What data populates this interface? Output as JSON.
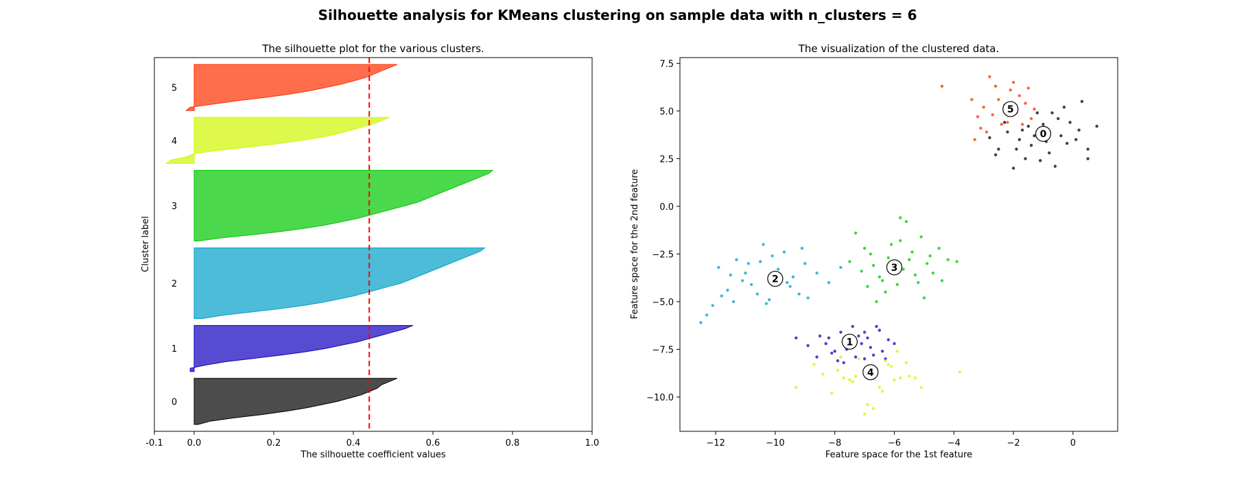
{
  "suptitle": "Silhouette analysis for KMeans clustering on sample data with n_clusters = 6",
  "chart_data": [
    {
      "type": "area",
      "title": "The silhouette plot for the various clusters.",
      "xlabel": "The silhouette coefficient values",
      "ylabel": "Cluster label",
      "xlim": [
        -0.1,
        1.0
      ],
      "xticks": [
        "-0.1",
        "0.0",
        "0.2",
        "0.4",
        "0.6",
        "0.8",
        "1.0"
      ],
      "xtick_values": [
        -0.1,
        0.0,
        0.2,
        0.4,
        0.6,
        0.8,
        1.0
      ],
      "grid": false,
      "average_silhouette_score": 0.44,
      "average_line_color": "#ff0000",
      "clusters": [
        {
          "label": "0",
          "color": "#000000",
          "sorted_values": [
            0.51,
            0.49,
            0.47,
            0.46,
            0.44,
            0.42,
            0.39,
            0.36,
            0.32,
            0.28,
            0.23,
            0.17,
            0.1,
            0.04,
            0.01
          ]
        },
        {
          "label": "1",
          "color": "#0f00bd",
          "sorted_values": [
            0.55,
            0.53,
            0.5,
            0.47,
            0.44,
            0.41,
            0.37,
            0.33,
            0.28,
            0.22,
            0.15,
            0.08,
            0.03,
            -0.01,
            -0.01
          ]
        },
        {
          "label": "2",
          "color": "#00a0c8",
          "sorted_values": [
            0.73,
            0.72,
            0.7,
            0.68,
            0.66,
            0.64,
            0.62,
            0.6,
            0.58,
            0.56,
            0.54,
            0.52,
            0.49,
            0.46,
            0.43,
            0.4,
            0.36,
            0.32,
            0.27,
            0.21,
            0.14,
            0.07,
            0.02
          ]
        },
        {
          "label": "3",
          "color": "#00c800",
          "sorted_values": [
            0.75,
            0.74,
            0.72,
            0.7,
            0.68,
            0.66,
            0.64,
            0.62,
            0.6,
            0.58,
            0.56,
            0.53,
            0.5,
            0.47,
            0.44,
            0.41,
            0.37,
            0.33,
            0.28,
            0.22,
            0.15,
            0.07,
            0.01
          ]
        },
        {
          "label": "4",
          "color": "#d0f700",
          "sorted_values": [
            0.49,
            0.47,
            0.45,
            0.42,
            0.39,
            0.36,
            0.32,
            0.27,
            0.21,
            0.14,
            0.06,
            0.0,
            -0.02,
            -0.06,
            -0.07
          ]
        },
        {
          "label": "5",
          "color": "#ff3000",
          "sorted_values": [
            0.51,
            0.49,
            0.47,
            0.45,
            0.43,
            0.4,
            0.37,
            0.33,
            0.29,
            0.24,
            0.18,
            0.11,
            0.05,
            -0.01,
            -0.02
          ]
        }
      ]
    },
    {
      "type": "scatter",
      "title": "The visualization of the clustered data.",
      "xlabel": "Feature space for the 1st feature",
      "ylabel": "Feature space for the 2nd feature",
      "xlim": [
        -13.2,
        1.5
      ],
      "ylim": [
        -11.8,
        7.8
      ],
      "xticks": [
        "−12",
        "−10",
        "−8",
        "−6",
        "−4",
        "−2",
        "0"
      ],
      "xtick_values": [
        -12,
        -10,
        -8,
        -6,
        -4,
        -2,
        0
      ],
      "yticks": [
        "7.5",
        "5.0",
        "2.5",
        "0.0",
        "−2.5",
        "−5.0",
        "−7.5",
        "−10.0"
      ],
      "ytick_values": [
        7.5,
        5.0,
        2.5,
        0.0,
        -2.5,
        -5.0,
        -7.5,
        -10.0
      ],
      "grid": false,
      "clusters": [
        {
          "label": "0",
          "color": "#000000",
          "center": [
            -1.0,
            3.8
          ],
          "points": [
            [
              -1.0,
              3.8
            ],
            [
              -1.5,
              4.2
            ],
            [
              -0.5,
              4.6
            ],
            [
              -0.2,
              3.3
            ],
            [
              -1.8,
              3.5
            ],
            [
              -2.2,
              3.9
            ],
            [
              -0.8,
              2.8
            ],
            [
              -1.2,
              4.9
            ],
            [
              -0.3,
              5.2
            ],
            [
              0.2,
              4.0
            ],
            [
              0.5,
              3.0
            ],
            [
              0.8,
              4.2
            ],
            [
              -2.5,
              3.0
            ],
            [
              -1.6,
              2.5
            ],
            [
              -0.6,
              2.1
            ],
            [
              0.5,
              2.5
            ],
            [
              -2.0,
              2.0
            ],
            [
              -1.0,
              4.3
            ],
            [
              -1.4,
              3.2
            ],
            [
              -0.1,
              4.4
            ],
            [
              -2.8,
              3.6
            ],
            [
              -2.3,
              4.4
            ],
            [
              0.1,
              3.5
            ],
            [
              -0.9,
              3.4
            ],
            [
              -1.7,
              4.0
            ],
            [
              -1.9,
              3.0
            ],
            [
              -0.4,
              3.7
            ],
            [
              -2.6,
              2.7
            ],
            [
              0.3,
              5.5
            ],
            [
              -1.1,
              2.4
            ],
            [
              -0.7,
              4.9
            ],
            [
              -1.3,
              3.7
            ]
          ]
        },
        {
          "label": "1",
          "color": "#0f00bd",
          "center": [
            -7.5,
            -7.1
          ],
          "points": [
            [
              -7.5,
              -7.1
            ],
            [
              -8.0,
              -7.6
            ],
            [
              -7.2,
              -6.8
            ],
            [
              -6.8,
              -7.4
            ],
            [
              -6.5,
              -6.5
            ],
            [
              -8.3,
              -7.2
            ],
            [
              -7.8,
              -6.6
            ],
            [
              -7.0,
              -8.0
            ],
            [
              -6.2,
              -7.0
            ],
            [
              -8.6,
              -7.9
            ],
            [
              -7.4,
              -6.3
            ],
            [
              -6.7,
              -7.8
            ],
            [
              -7.9,
              -8.1
            ],
            [
              -8.9,
              -7.3
            ],
            [
              -6.4,
              -7.6
            ],
            [
              -7.6,
              -7.5
            ],
            [
              -7.1,
              -7.2
            ],
            [
              -8.2,
              -6.9
            ],
            [
              -6.9,
              -6.9
            ],
            [
              -6.0,
              -7.2
            ],
            [
              -7.3,
              -7.9
            ],
            [
              -6.6,
              -6.3
            ],
            [
              -8.5,
              -6.8
            ],
            [
              -7.7,
              -8.2
            ],
            [
              -9.3,
              -6.9
            ],
            [
              -6.3,
              -8.0
            ],
            [
              -7.0,
              -6.6
            ],
            [
              -8.1,
              -7.7
            ]
          ]
        },
        {
          "label": "2",
          "color": "#00a0c8",
          "center": [
            -10.0,
            -3.8
          ],
          "points": [
            [
              -10.0,
              -3.8
            ],
            [
              -11.0,
              -3.5
            ],
            [
              -9.5,
              -4.2
            ],
            [
              -10.5,
              -2.9
            ],
            [
              -9.0,
              -3.0
            ],
            [
              -11.6,
              -4.4
            ],
            [
              -12.1,
              -5.2
            ],
            [
              -10.2,
              -4.9
            ],
            [
              -9.2,
              -4.6
            ],
            [
              -11.3,
              -2.8
            ],
            [
              -8.6,
              -3.5
            ],
            [
              -10.8,
              -4.1
            ],
            [
              -12.5,
              -6.1
            ],
            [
              -11.9,
              -3.2
            ],
            [
              -9.7,
              -2.4
            ],
            [
              -10.4,
              -2.0
            ],
            [
              -8.2,
              -4.0
            ],
            [
              -11.1,
              -3.9
            ],
            [
              -9.9,
              -3.3
            ],
            [
              -10.6,
              -4.6
            ],
            [
              -12.3,
              -5.7
            ],
            [
              -11.4,
              -5.0
            ],
            [
              -8.9,
              -4.8
            ],
            [
              -10.1,
              -2.6
            ],
            [
              -9.4,
              -3.7
            ],
            [
              -11.8,
              -4.7
            ],
            [
              -10.9,
              -3.0
            ],
            [
              -9.1,
              -2.2
            ],
            [
              -7.8,
              -3.2
            ],
            [
              -11.5,
              -3.6
            ],
            [
              -10.3,
              -5.1
            ],
            [
              -9.6,
              -4.0
            ]
          ]
        },
        {
          "label": "3",
          "color": "#00c800",
          "center": [
            -6.0,
            -3.2
          ],
          "points": [
            [
              -6.0,
              -3.2
            ],
            [
              -5.5,
              -2.8
            ],
            [
              -6.5,
              -3.7
            ],
            [
              -5.2,
              -4.0
            ],
            [
              -6.8,
              -2.5
            ],
            [
              -5.8,
              -1.8
            ],
            [
              -6.3,
              -4.5
            ],
            [
              -4.9,
              -3.0
            ],
            [
              -7.1,
              -3.4
            ],
            [
              -5.6,
              -0.8
            ],
            [
              -6.9,
              -4.2
            ],
            [
              -4.5,
              -2.2
            ],
            [
              -5.0,
              -4.8
            ],
            [
              -7.5,
              -2.9
            ],
            [
              -6.1,
              -2.0
            ],
            [
              -5.3,
              -3.6
            ],
            [
              -4.7,
              -3.5
            ],
            [
              -6.6,
              -5.0
            ],
            [
              -7.3,
              -1.4
            ],
            [
              -5.9,
              -4.1
            ],
            [
              -4.2,
              -2.8
            ],
            [
              -5.4,
              -2.4
            ],
            [
              -6.2,
              -2.7
            ],
            [
              -3.9,
              -2.9
            ],
            [
              -5.7,
              -3.3
            ],
            [
              -6.7,
              -3.1
            ],
            [
              -5.1,
              -1.6
            ],
            [
              -4.4,
              -3.9
            ],
            [
              -7.0,
              -2.2
            ],
            [
              -6.4,
              -3.9
            ],
            [
              -5.8,
              -0.6
            ],
            [
              -4.8,
              -2.6
            ]
          ]
        },
        {
          "label": "4",
          "color": "#d0f700",
          "center": [
            -6.8,
            -8.7
          ],
          "points": [
            [
              -6.8,
              -8.7
            ],
            [
              -7.5,
              -9.1
            ],
            [
              -6.2,
              -8.3
            ],
            [
              -5.8,
              -9.0
            ],
            [
              -7.2,
              -8.0
            ],
            [
              -6.5,
              -9.5
            ],
            [
              -7.9,
              -8.6
            ],
            [
              -5.5,
              -8.9
            ],
            [
              -6.9,
              -10.4
            ],
            [
              -7.0,
              -10.9
            ],
            [
              -8.4,
              -8.8
            ],
            [
              -5.9,
              -7.6
            ],
            [
              -6.3,
              -8.1
            ],
            [
              -7.7,
              -9.0
            ],
            [
              -5.3,
              -9.0
            ],
            [
              -6.1,
              -8.4
            ],
            [
              -8.1,
              -9.8
            ],
            [
              -6.7,
              -10.6
            ],
            [
              -5.1,
              -9.5
            ],
            [
              -3.8,
              -8.7
            ],
            [
              -7.3,
              -8.9
            ],
            [
              -6.0,
              -9.1
            ],
            [
              -8.7,
              -8.3
            ],
            [
              -7.4,
              -9.2
            ],
            [
              -9.3,
              -9.5
            ],
            [
              -6.6,
              -8.5
            ],
            [
              -5.6,
              -8.2
            ],
            [
              -7.8,
              -7.9
            ],
            [
              -6.4,
              -9.7
            ]
          ]
        },
        {
          "label": "5",
          "color": "#ff3000",
          "center": [
            -2.1,
            5.1
          ],
          "points": [
            [
              -2.1,
              5.1
            ],
            [
              -2.5,
              5.6
            ],
            [
              -2.7,
              4.8
            ],
            [
              -1.8,
              5.8
            ],
            [
              -3.0,
              5.2
            ],
            [
              -2.2,
              4.4
            ],
            [
              -1.5,
              6.2
            ],
            [
              -2.8,
              6.8
            ],
            [
              -3.4,
              5.6
            ],
            [
              -1.3,
              5.1
            ],
            [
              -2.4,
              4.3
            ],
            [
              -2.6,
              6.3
            ],
            [
              -1.9,
              4.9
            ],
            [
              -3.1,
              4.1
            ],
            [
              -1.6,
              5.4
            ],
            [
              -4.4,
              6.3
            ],
            [
              -2.9,
              3.9
            ],
            [
              -2.0,
              6.5
            ],
            [
              -3.3,
              3.5
            ],
            [
              -1.4,
              4.6
            ],
            [
              -2.3,
              5.3
            ],
            [
              -3.2,
              4.7
            ],
            [
              -1.7,
              4.3
            ],
            [
              -2.1,
              6.1
            ]
          ]
        }
      ]
    }
  ]
}
